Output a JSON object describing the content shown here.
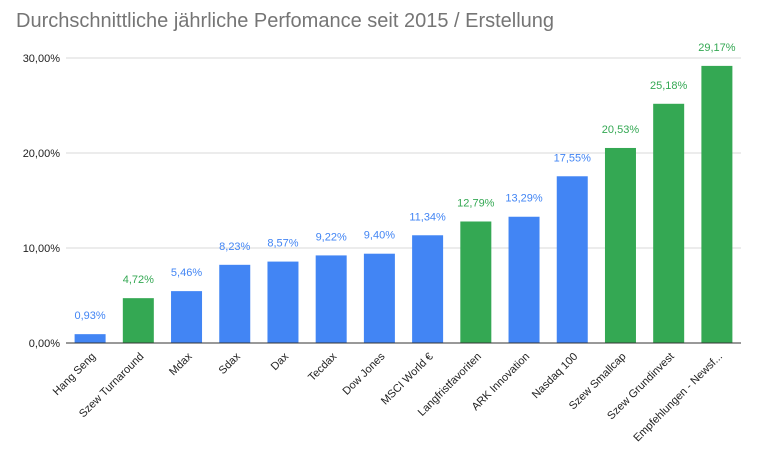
{
  "chart_data": {
    "type": "bar",
    "title": "Durchschnittliche jährliche Perfomance seit 2015 / Erstellung",
    "xlabel": "",
    "ylabel": "",
    "ylim": [
      0,
      30
    ],
    "grid": true,
    "y_ticks": [
      {
        "value": 0,
        "label": "0,00%"
      },
      {
        "value": 10,
        "label": "10,00%"
      },
      {
        "value": 20,
        "label": "20,00%"
      },
      {
        "value": 30,
        "label": "30,00%"
      }
    ],
    "categories": [
      "Hang Seng",
      "Szew Turnaround",
      "Mdax",
      "Sdax",
      "Dax",
      "Tecdax",
      "Dow Jones",
      "MSCI World €",
      "Langfristfavoriten",
      "ARK Innovation",
      "Nasdaq 100",
      "Szew Smallcap",
      "Szew Grundinvest",
      "Empfehlungen - Newsf..."
    ],
    "values": [
      0.93,
      4.72,
      5.46,
      8.23,
      8.57,
      9.22,
      9.4,
      11.34,
      12.79,
      13.29,
      17.55,
      20.53,
      25.18,
      29.17
    ],
    "value_labels": [
      "0,93%",
      "4,72%",
      "5,46%",
      "8,23%",
      "8,57%",
      "9,22%",
      "9,40%",
      "11,34%",
      "12,79%",
      "13,29%",
      "17,55%",
      "20,53%",
      "25,18%",
      "29,17%"
    ],
    "bar_colors": [
      "#4285f4",
      "#34a853",
      "#4285f4",
      "#4285f4",
      "#4285f4",
      "#4285f4",
      "#4285f4",
      "#4285f4",
      "#34a853",
      "#4285f4",
      "#4285f4",
      "#34a853",
      "#34a853",
      "#34a853"
    ],
    "label_colors": [
      "#4285f4",
      "#34a853",
      "#4285f4",
      "#4285f4",
      "#4285f4",
      "#4285f4",
      "#4285f4",
      "#4285f4",
      "#34a853",
      "#4285f4",
      "#4285f4",
      "#34a853",
      "#34a853",
      "#34a853"
    ]
  }
}
